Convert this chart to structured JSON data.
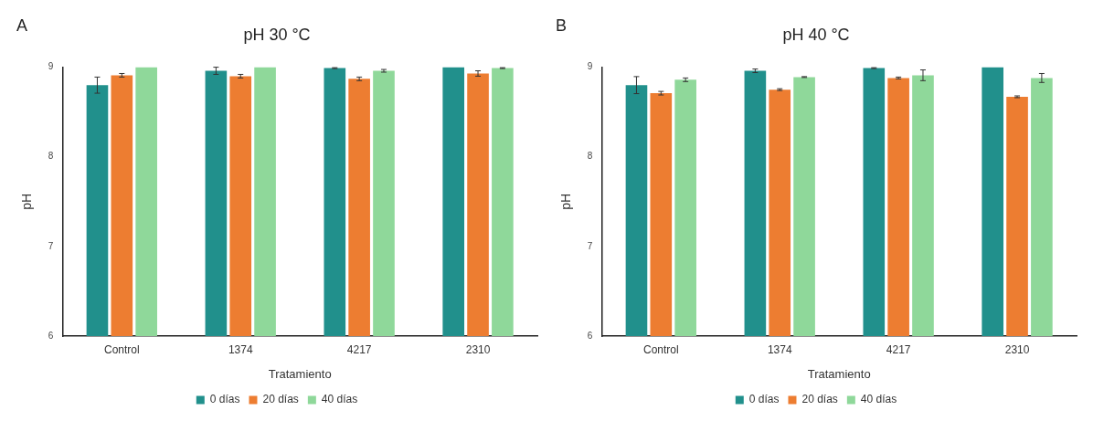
{
  "chart_data": [
    {
      "type": "bar",
      "title": "pH 30 °C",
      "annotations": [
        "A"
      ],
      "xlabel": "Tratamiento",
      "ylabel": "pH",
      "categories": [
        "Control",
        "1374",
        "4217",
        "2310"
      ],
      "ylim": [
        6,
        9
      ],
      "yticks": [
        6,
        7,
        8,
        9
      ],
      "legend": "bottom",
      "series": [
        {
          "name": "0 días",
          "color": "#21908c",
          "values": [
            8.8,
            8.96,
            8.99,
            9.0
          ],
          "errors": [
            0.09,
            0.04,
            0.005,
            null
          ]
        },
        {
          "name": "20 días",
          "color": "#ed7d31",
          "values": [
            8.91,
            8.9,
            8.87,
            8.93
          ],
          "errors": [
            0.02,
            0.02,
            0.02,
            0.03
          ]
        },
        {
          "name": "40 días",
          "color": "#8fd89a",
          "values": [
            9.0,
            9.0,
            8.96,
            8.99
          ],
          "errors": [
            null,
            null,
            0.015,
            0.005
          ]
        }
      ]
    },
    {
      "type": "bar",
      "title": "pH 40 °C",
      "annotations": [
        "B"
      ],
      "xlabel": "Tratamiento",
      "ylabel": "pH",
      "categories": [
        "Control",
        "1374",
        "4217",
        "2310"
      ],
      "ylim": [
        6,
        9
      ],
      "yticks": [
        6,
        7,
        8,
        9
      ],
      "legend": "bottom",
      "series": [
        {
          "name": "0 días",
          "color": "#21908c",
          "values": [
            8.8,
            8.96,
            8.99,
            9.0
          ],
          "errors": [
            0.095,
            0.02,
            0.005,
            null
          ]
        },
        {
          "name": "20 días",
          "color": "#ed7d31",
          "values": [
            8.71,
            8.75,
            8.88,
            8.67
          ],
          "errors": [
            0.02,
            0.01,
            0.01,
            0.01
          ]
        },
        {
          "name": "40 días",
          "color": "#8fd89a",
          "values": [
            8.86,
            8.89,
            8.91,
            8.88
          ],
          "errors": [
            0.02,
            0.005,
            0.06,
            0.05
          ]
        }
      ]
    }
  ]
}
